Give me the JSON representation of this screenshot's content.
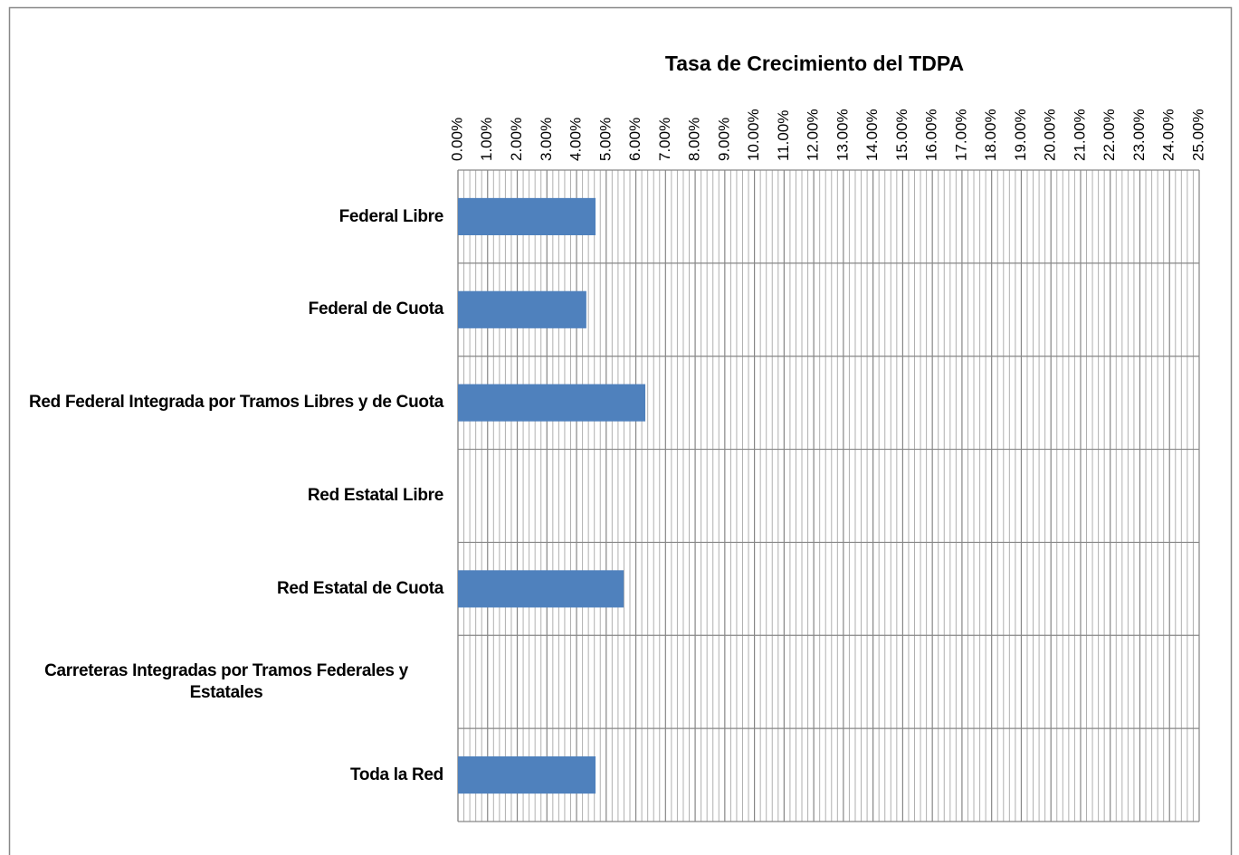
{
  "chart_data": {
    "type": "bar",
    "orientation": "horizontal",
    "title": "Tasa de Crecimiento del TDPA",
    "categories": [
      "Federal Libre",
      "Federal de Cuota",
      "Red Federal Integrada por Tramos Libres y de Cuota",
      "Red Estatal Libre",
      "Red Estatal de Cuota",
      "Carreteras Integradas por Tramos Federales y Estatales",
      "Toda la Red"
    ],
    "values": [
      4.64,
      4.33,
      6.32,
      null,
      5.59,
      null,
      4.64
    ],
    "color": "#4f81bd",
    "xlim": [
      0,
      25
    ],
    "xticks": [
      {
        "value": 0,
        "label": "0.00%"
      },
      {
        "value": 1,
        "label": "1.00%"
      },
      {
        "value": 2,
        "label": "2.00%"
      },
      {
        "value": 3,
        "label": "3.00%"
      },
      {
        "value": 4,
        "label": "4.00%"
      },
      {
        "value": 5,
        "label": "5.00%"
      },
      {
        "value": 6,
        "label": "6.00%"
      },
      {
        "value": 7,
        "label": "7.00%"
      },
      {
        "value": 8,
        "label": "8.00%"
      },
      {
        "value": 9,
        "label": "9.00%"
      },
      {
        "value": 10,
        "label": "10.00%"
      },
      {
        "value": 11,
        "label": "11.00%"
      },
      {
        "value": 12,
        "label": "12.00%"
      },
      {
        "value": 13,
        "label": "13.00%"
      },
      {
        "value": 14,
        "label": "14.00%"
      },
      {
        "value": 15,
        "label": "15.00%"
      },
      {
        "value": 16,
        "label": "16.00%"
      },
      {
        "value": 17,
        "label": "17.00%"
      },
      {
        "value": 18,
        "label": "18.00%"
      },
      {
        "value": 19,
        "label": "19.00%"
      },
      {
        "value": 20,
        "label": "20.00%"
      },
      {
        "value": 21,
        "label": "21.00%"
      },
      {
        "value": 22,
        "label": "22.00%"
      },
      {
        "value": 23,
        "label": "23.00%"
      },
      {
        "value": 24,
        "label": "24.00%"
      },
      {
        "value": 25,
        "label": "25.00%"
      }
    ],
    "grid": true,
    "minor_grid": true
  }
}
